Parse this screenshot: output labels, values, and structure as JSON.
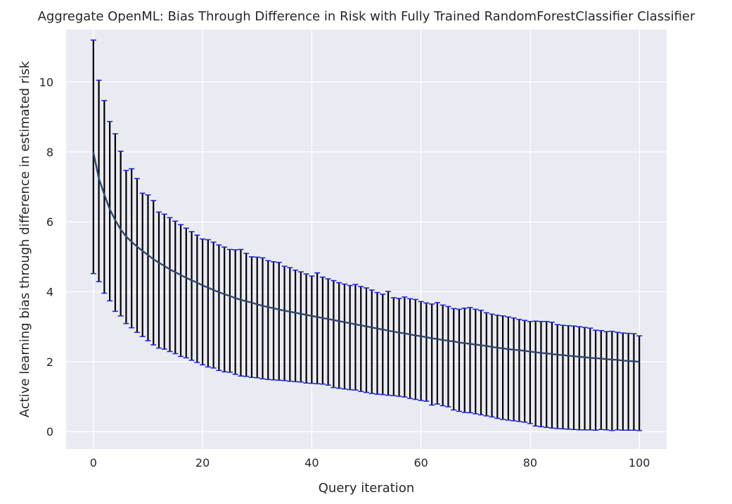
{
  "chart_data": {
    "type": "line",
    "title": "Aggregate OpenML: Bias Through Difference in Risk with Fully Trained RandomForestClassifier Classifier",
    "xlabel": "Query iteration",
    "ylabel": "Active learning bias through difference in estimated risk",
    "xlim": [
      -5,
      105
    ],
    "ylim": [
      -0.5,
      11.5
    ],
    "xticks": [
      0,
      20,
      40,
      60,
      80,
      100
    ],
    "yticks": [
      0,
      2,
      4,
      6,
      8,
      10
    ],
    "grid": true,
    "error_bars": true,
    "series": [
      {
        "x": [
          0,
          1,
          2,
          3,
          4,
          5,
          6,
          7,
          8,
          9,
          10,
          11,
          12,
          13,
          14,
          15,
          16,
          17,
          18,
          19,
          20,
          21,
          22,
          23,
          24,
          25,
          26,
          27,
          28,
          29,
          30,
          31,
          32,
          33,
          34,
          35,
          36,
          37,
          38,
          39,
          40,
          41,
          42,
          43,
          44,
          45,
          46,
          47,
          48,
          49,
          50,
          51,
          52,
          53,
          54,
          55,
          56,
          57,
          58,
          59,
          60,
          61,
          62,
          63,
          64,
          65,
          66,
          67,
          68,
          69,
          70,
          71,
          72,
          73,
          74,
          75,
          76,
          77,
          78,
          79,
          80,
          81,
          82,
          83,
          84,
          85,
          86,
          87,
          88,
          89,
          90,
          91,
          92,
          93,
          94,
          95,
          96,
          97,
          98,
          99,
          100
        ],
        "values": [
          7.99,
          7.24,
          6.78,
          6.36,
          6.05,
          5.78,
          5.58,
          5.43,
          5.29,
          5.17,
          5.05,
          4.93,
          4.83,
          4.74,
          4.64,
          4.56,
          4.48,
          4.4,
          4.33,
          4.26,
          4.18,
          4.12,
          4.05,
          3.99,
          3.93,
          3.88,
          3.82,
          3.77,
          3.73,
          3.69,
          3.64,
          3.6,
          3.56,
          3.53,
          3.49,
          3.46,
          3.43,
          3.4,
          3.37,
          3.34,
          3.31,
          3.28,
          3.25,
          3.22,
          3.19,
          3.16,
          3.13,
          3.1,
          3.07,
          3.04,
          3.01,
          2.98,
          2.95,
          2.92,
          2.89,
          2.86,
          2.83,
          2.81,
          2.78,
          2.75,
          2.73,
          2.7,
          2.67,
          2.65,
          2.62,
          2.6,
          2.58,
          2.55,
          2.53,
          2.51,
          2.49,
          2.47,
          2.45,
          2.42,
          2.4,
          2.38,
          2.36,
          2.34,
          2.33,
          2.31,
          2.29,
          2.27,
          2.25,
          2.24,
          2.22,
          2.2,
          2.19,
          2.17,
          2.16,
          2.14,
          2.13,
          2.11,
          2.1,
          2.09,
          2.07,
          2.06,
          2.05,
          2.03,
          2.02,
          2.01,
          2.0
        ],
        "upper": [
          11.2,
          10.05,
          9.47,
          8.87,
          8.52,
          8.02,
          7.47,
          7.52,
          7.24,
          6.82,
          6.77,
          6.61,
          6.28,
          6.22,
          6.12,
          6.02,
          5.92,
          5.82,
          5.72,
          5.62,
          5.51,
          5.49,
          5.42,
          5.34,
          5.28,
          5.21,
          5.2,
          5.21,
          5.1,
          5.0,
          4.99,
          4.97,
          4.89,
          4.86,
          4.84,
          4.73,
          4.69,
          4.62,
          4.57,
          4.51,
          4.45,
          4.54,
          4.42,
          4.37,
          4.32,
          4.26,
          4.22,
          4.18,
          4.21,
          4.15,
          4.11,
          4.05,
          3.98,
          3.93,
          4.01,
          3.83,
          3.81,
          3.85,
          3.8,
          3.78,
          3.72,
          3.68,
          3.65,
          3.69,
          3.62,
          3.58,
          3.52,
          3.5,
          3.53,
          3.55,
          3.5,
          3.47,
          3.4,
          3.36,
          3.33,
          3.31,
          3.28,
          3.25,
          3.21,
          3.18,
          3.15,
          3.16,
          3.15,
          3.15,
          3.13,
          3.06,
          3.04,
          3.03,
          3.02,
          3.0,
          2.98,
          2.96,
          2.9,
          2.89,
          2.86,
          2.87,
          2.84,
          2.82,
          2.81,
          2.8,
          2.74
        ],
        "lower": [
          4.52,
          4.29,
          3.96,
          3.74,
          3.44,
          3.31,
          3.09,
          2.97,
          2.84,
          2.72,
          2.6,
          2.48,
          2.39,
          2.36,
          2.29,
          2.23,
          2.15,
          2.11,
          2.04,
          1.98,
          1.91,
          1.85,
          1.82,
          1.75,
          1.71,
          1.7,
          1.64,
          1.59,
          1.58,
          1.55,
          1.54,
          1.51,
          1.49,
          1.48,
          1.47,
          1.46,
          1.44,
          1.43,
          1.42,
          1.39,
          1.38,
          1.37,
          1.36,
          1.33,
          1.26,
          1.24,
          1.22,
          1.2,
          1.19,
          1.15,
          1.12,
          1.09,
          1.07,
          1.06,
          1.04,
          1.03,
          1.01,
          0.99,
          0.95,
          0.92,
          0.89,
          0.87,
          0.76,
          0.79,
          0.74,
          0.71,
          0.62,
          0.58,
          0.55,
          0.54,
          0.51,
          0.48,
          0.45,
          0.42,
          0.38,
          0.35,
          0.33,
          0.31,
          0.29,
          0.27,
          0.23,
          0.16,
          0.14,
          0.12,
          0.1,
          0.09,
          0.08,
          0.07,
          0.06,
          0.05,
          0.05,
          0.05,
          0.04,
          0.06,
          0.05,
          0.03,
          0.05,
          0.04,
          0.04,
          0.04,
          0.03
        ]
      }
    ]
  }
}
